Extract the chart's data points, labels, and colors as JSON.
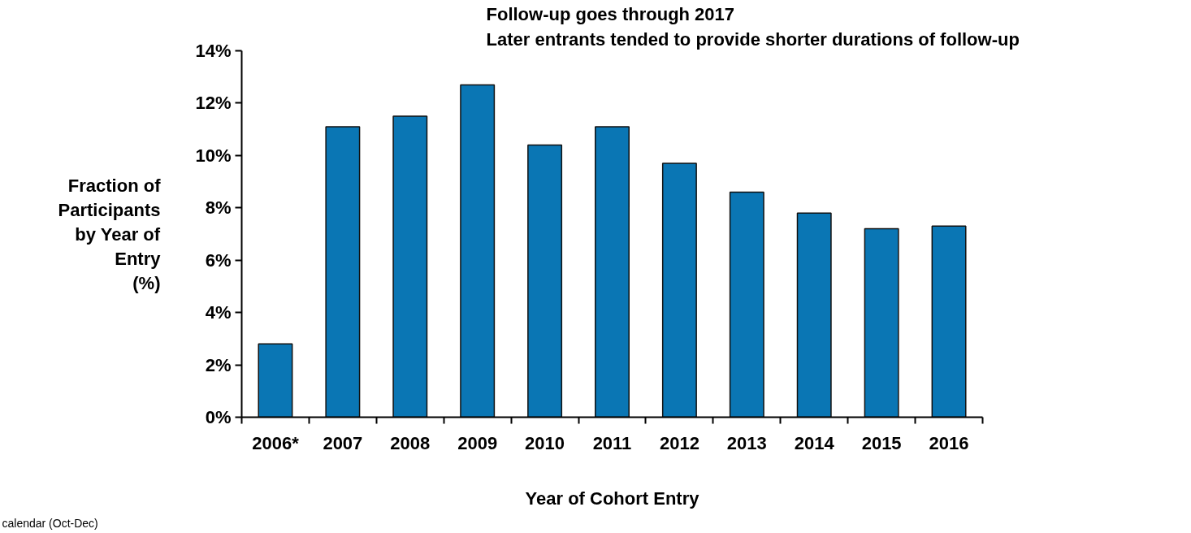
{
  "chart_data": {
    "type": "bar",
    "xlabel": "Year of Cohort Entry",
    "ylabel": "Fraction of\nParticipants\nby Year of\nEntry\n(%)",
    "categories": [
      "2006*",
      "2007",
      "2008",
      "2009",
      "2010",
      "2011",
      "2012",
      "2013",
      "2014",
      "2015",
      "2016"
    ],
    "values": [
      2.8,
      11.1,
      11.5,
      12.7,
      10.4,
      11.1,
      9.7,
      8.6,
      7.8,
      7.2,
      7.3
    ],
    "color": "#0a76b4",
    "ylim": [
      0,
      14
    ],
    "yticks": [
      {
        "value": 0,
        "label": "0%"
      },
      {
        "value": 2,
        "label": "2%"
      },
      {
        "value": 4,
        "label": "4%"
      },
      {
        "value": 6,
        "label": "6%"
      },
      {
        "value": 8,
        "label": "8%"
      },
      {
        "value": 10,
        "label": "10%"
      },
      {
        "value": 12,
        "label": "12%"
      },
      {
        "value": 14,
        "label": "14%"
      }
    ],
    "grid": false,
    "annotations": [
      "Follow-up goes through 2017",
      "Later entrants tended to provide shorter durations of follow-up",
      "calendar (Oct-Dec)"
    ]
  }
}
